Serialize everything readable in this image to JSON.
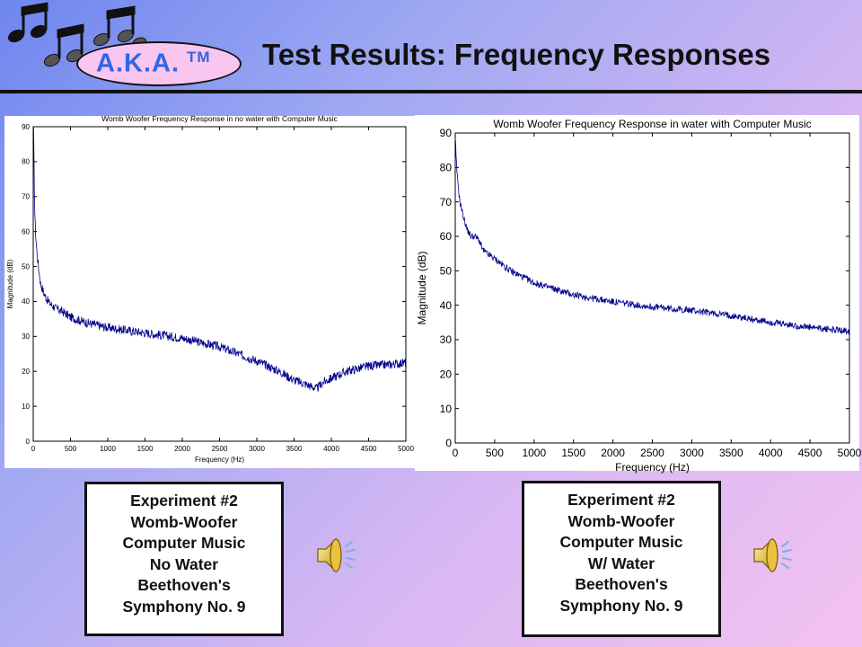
{
  "header": {
    "logo_text": "A.K.A.",
    "logo_tm": "TM",
    "title": "Test Results: Frequency Responses"
  },
  "chart_data": [
    {
      "type": "line",
      "title": "Womb Woofer Frequency Response in no water with Computer Music",
      "xlabel": "Frequency (Hz)",
      "ylabel": "Magnitude (dB)",
      "xlim": [
        0,
        5000
      ],
      "ylim": [
        0,
        90
      ],
      "x_ticks": [
        0,
        500,
        1000,
        1500,
        2000,
        2500,
        3000,
        3500,
        4000,
        4500,
        5000
      ],
      "y_ticks": [
        0,
        10,
        20,
        30,
        40,
        50,
        60,
        70,
        80,
        90
      ],
      "grid": false,
      "series": [
        {
          "color": "#00008b",
          "x": [
            5,
            10,
            20,
            30,
            50,
            75,
            100,
            150,
            200,
            300,
            400,
            500,
            700,
            1000,
            1500,
            2000,
            2500,
            3000,
            3300,
            3500,
            3700,
            3800,
            3900,
            4000,
            4200,
            4500,
            4800,
            5000
          ],
          "y": [
            90,
            80,
            66,
            60,
            54,
            49,
            45,
            42,
            40,
            38,
            37,
            35.5,
            34,
            32.5,
            31,
            29.5,
            27,
            23,
            20,
            17.5,
            16,
            15,
            17,
            18,
            20,
            21.5,
            22,
            22.5
          ],
          "noise": 1.3
        }
      ]
    },
    {
      "type": "line",
      "title": "Womb Woofer Frequency Response in water with Computer Music",
      "xlabel": "Frequency (Hz)",
      "ylabel": "Magnitude (dB)",
      "xlim": [
        0,
        5000
      ],
      "ylim": [
        0,
        90
      ],
      "x_ticks": [
        0,
        500,
        1000,
        1500,
        2000,
        2500,
        3000,
        3500,
        4000,
        4500,
        5000
      ],
      "y_ticks": [
        0,
        10,
        20,
        30,
        40,
        50,
        60,
        70,
        80,
        90
      ],
      "grid": false,
      "series": [
        {
          "color": "#00008b",
          "x": [
            5,
            10,
            30,
            60,
            100,
            150,
            200,
            250,
            300,
            350,
            400,
            500,
            700,
            1000,
            1500,
            2000,
            2500,
            3000,
            3500,
            4000,
            4500,
            5000
          ],
          "y": [
            87,
            83,
            76,
            70,
            66,
            62,
            60,
            60,
            59,
            56,
            55,
            53.5,
            50,
            46.5,
            43,
            41,
            39.5,
            38.5,
            37,
            35,
            33.5,
            32.5
          ],
          "noise": 1.0
        }
      ]
    }
  ],
  "captions": {
    "left": [
      "Experiment #2",
      "Womb-Woofer",
      "Computer Music",
      "No Water",
      "Beethoven's",
      "Symphony No. 9"
    ],
    "right": [
      "Experiment #2",
      "Womb-Woofer",
      "Computer Music",
      "W/ Water",
      "Beethoven's",
      "Symphony No. 9"
    ]
  },
  "icons": {
    "logo": "music-notes-icon",
    "speaker": "speaker-icon"
  }
}
